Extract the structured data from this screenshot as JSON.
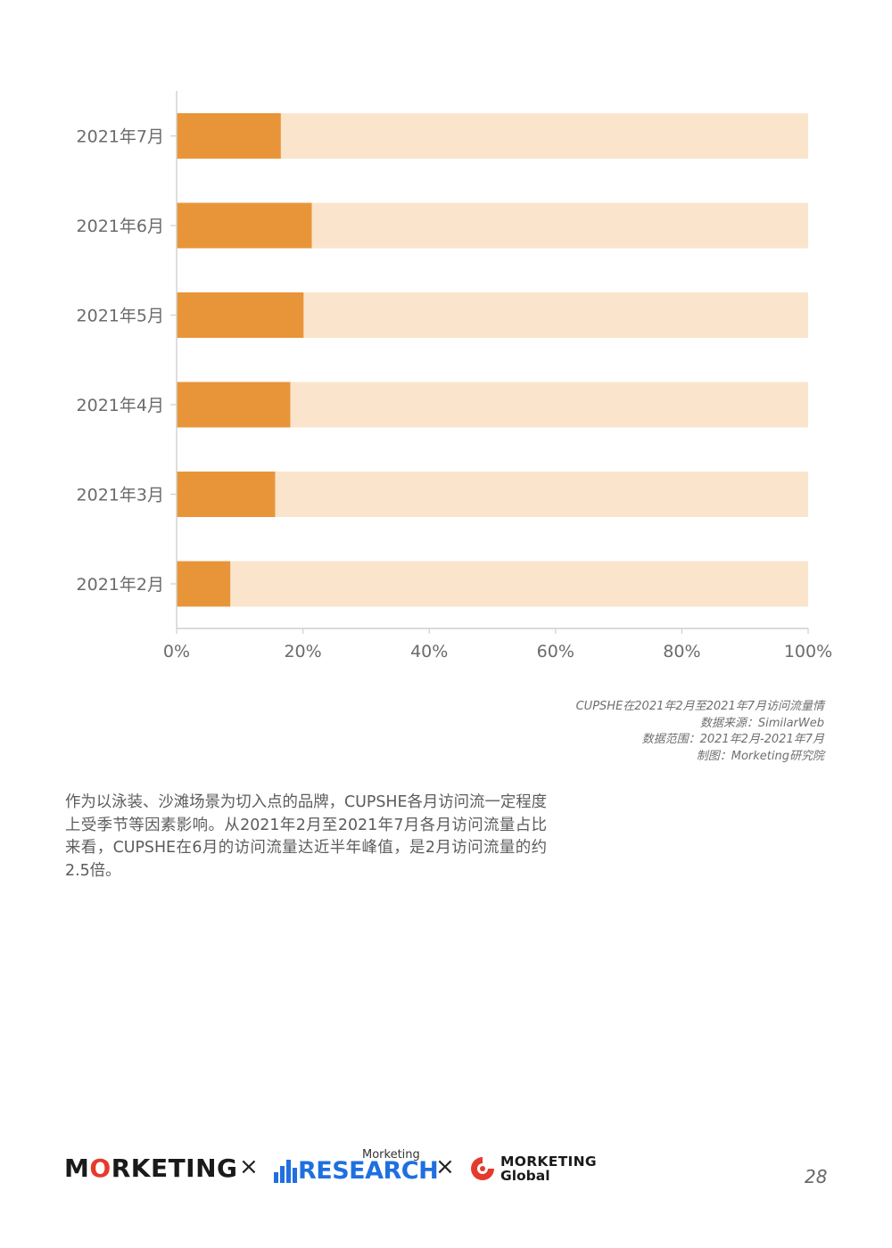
{
  "chart_data": {
    "type": "bar",
    "orientation": "horizontal",
    "stacked_to_100": true,
    "categories": [
      "2021年7月",
      "2021年6月",
      "2021年5月",
      "2021年4月",
      "2021年3月",
      "2021年2月"
    ],
    "values": [
      16.5,
      21.4,
      20.1,
      18.0,
      15.6,
      8.5
    ],
    "xlim": [
      0,
      100
    ],
    "x_ticks": [
      "0%",
      "20%",
      "40%",
      "60%",
      "80%",
      "100%"
    ],
    "colors": {
      "value": "#e8953a",
      "remainder": "#fae5cc",
      "axis": "#cfcfcf"
    },
    "grid": false
  },
  "caption": {
    "lines": [
      "CUPSHE在2021年2月至2021年7月访问流量情",
      "数据来源：SimilarWeb",
      "数据范围：2021年2月-2021年7月",
      "制图：Morketing研究院"
    ]
  },
  "body": {
    "paragraph": "作为以泳装、沙滩场景为切入点的品牌，CUPSHE各月访问流一定程度上受季节等因素影响。从2021年2月至2021年7月各月访问流量占比来看，CUPSHE在6月的访问流量达近半年峰值，是2月访问流量的约2.5倍。"
  },
  "footer": {
    "logo_morketing": {
      "pre": "M",
      "mark": "O",
      "post": "RKETING"
    },
    "times_symbol": "×",
    "logo_research": {
      "small": "Morketing",
      "word": "RESEARCH"
    },
    "logo_global": {
      "line1": "MORKETING",
      "line2": "Global"
    },
    "colors": {
      "brand_red": "#e53b2c",
      "brand_blue": "#1f6fe0"
    },
    "page_number": "28"
  }
}
